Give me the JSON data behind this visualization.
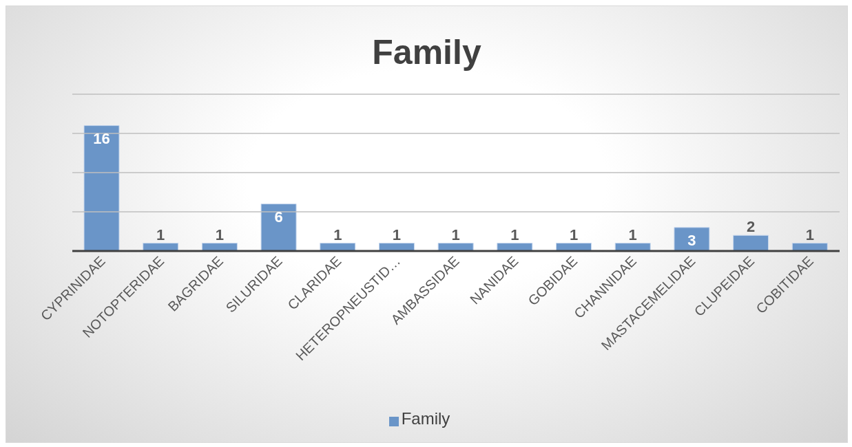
{
  "chart_data": {
    "type": "bar",
    "title": "Family",
    "categories": [
      "CYPRINIDAE",
      "NOTOPTERIDAE",
      "BAGRIDAE",
      "SILURIDAE",
      "CLARIDAE",
      "HETEROPNEUSTID…",
      "AMBASSIDAE",
      "NANIDAE",
      "GOBIDAE",
      "CHANNIDAE",
      "MASTACEMELIDAE",
      "CLUPEIDAE",
      "COBITIDAE"
    ],
    "series": [
      {
        "name": "Family",
        "color": "#6a95c8",
        "values": [
          16,
          1,
          1,
          6,
          1,
          1,
          1,
          1,
          1,
          1,
          3,
          2,
          1
        ]
      }
    ],
    "data_labels": true,
    "ylim": [
      0,
      20
    ],
    "yticks": [
      {
        "value": 0,
        "label": null
      },
      {
        "value": 5,
        "label": null
      },
      {
        "value": 10,
        "label": null
      },
      {
        "value": 15,
        "label": null
      },
      {
        "value": 20,
        "label": null
      }
    ],
    "tick_labels": "x",
    "grid": "y",
    "legend": "bottom"
  }
}
